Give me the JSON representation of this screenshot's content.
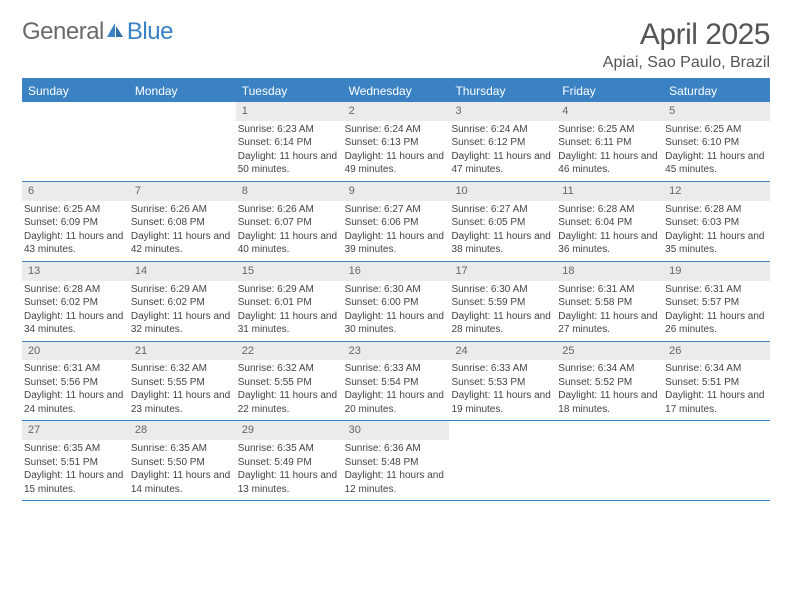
{
  "brand": {
    "part1": "General",
    "part2": "Blue"
  },
  "title": "April 2025",
  "location": "Apiai, Sao Paulo, Brazil",
  "colors": {
    "accent": "#3b82c4",
    "header_bg": "#3b82c4",
    "header_text": "#ffffff",
    "daynum_bg": "#ebebeb",
    "daynum_text": "#666666",
    "body_text": "#444444",
    "border": "#3b82c4"
  },
  "weekdays": [
    "Sunday",
    "Monday",
    "Tuesday",
    "Wednesday",
    "Thursday",
    "Friday",
    "Saturday"
  ],
  "weeks": [
    [
      {
        "n": "",
        "empty": true
      },
      {
        "n": "",
        "empty": true
      },
      {
        "n": "1",
        "sr": "Sunrise: 6:23 AM",
        "ss": "Sunset: 6:14 PM",
        "dl": "Daylight: 11 hours and 50 minutes."
      },
      {
        "n": "2",
        "sr": "Sunrise: 6:24 AM",
        "ss": "Sunset: 6:13 PM",
        "dl": "Daylight: 11 hours and 49 minutes."
      },
      {
        "n": "3",
        "sr": "Sunrise: 6:24 AM",
        "ss": "Sunset: 6:12 PM",
        "dl": "Daylight: 11 hours and 47 minutes."
      },
      {
        "n": "4",
        "sr": "Sunrise: 6:25 AM",
        "ss": "Sunset: 6:11 PM",
        "dl": "Daylight: 11 hours and 46 minutes."
      },
      {
        "n": "5",
        "sr": "Sunrise: 6:25 AM",
        "ss": "Sunset: 6:10 PM",
        "dl": "Daylight: 11 hours and 45 minutes."
      }
    ],
    [
      {
        "n": "6",
        "sr": "Sunrise: 6:25 AM",
        "ss": "Sunset: 6:09 PM",
        "dl": "Daylight: 11 hours and 43 minutes."
      },
      {
        "n": "7",
        "sr": "Sunrise: 6:26 AM",
        "ss": "Sunset: 6:08 PM",
        "dl": "Daylight: 11 hours and 42 minutes."
      },
      {
        "n": "8",
        "sr": "Sunrise: 6:26 AM",
        "ss": "Sunset: 6:07 PM",
        "dl": "Daylight: 11 hours and 40 minutes."
      },
      {
        "n": "9",
        "sr": "Sunrise: 6:27 AM",
        "ss": "Sunset: 6:06 PM",
        "dl": "Daylight: 11 hours and 39 minutes."
      },
      {
        "n": "10",
        "sr": "Sunrise: 6:27 AM",
        "ss": "Sunset: 6:05 PM",
        "dl": "Daylight: 11 hours and 38 minutes."
      },
      {
        "n": "11",
        "sr": "Sunrise: 6:28 AM",
        "ss": "Sunset: 6:04 PM",
        "dl": "Daylight: 11 hours and 36 minutes."
      },
      {
        "n": "12",
        "sr": "Sunrise: 6:28 AM",
        "ss": "Sunset: 6:03 PM",
        "dl": "Daylight: 11 hours and 35 minutes."
      }
    ],
    [
      {
        "n": "13",
        "sr": "Sunrise: 6:28 AM",
        "ss": "Sunset: 6:02 PM",
        "dl": "Daylight: 11 hours and 34 minutes."
      },
      {
        "n": "14",
        "sr": "Sunrise: 6:29 AM",
        "ss": "Sunset: 6:02 PM",
        "dl": "Daylight: 11 hours and 32 minutes."
      },
      {
        "n": "15",
        "sr": "Sunrise: 6:29 AM",
        "ss": "Sunset: 6:01 PM",
        "dl": "Daylight: 11 hours and 31 minutes."
      },
      {
        "n": "16",
        "sr": "Sunrise: 6:30 AM",
        "ss": "Sunset: 6:00 PM",
        "dl": "Daylight: 11 hours and 30 minutes."
      },
      {
        "n": "17",
        "sr": "Sunrise: 6:30 AM",
        "ss": "Sunset: 5:59 PM",
        "dl": "Daylight: 11 hours and 28 minutes."
      },
      {
        "n": "18",
        "sr": "Sunrise: 6:31 AM",
        "ss": "Sunset: 5:58 PM",
        "dl": "Daylight: 11 hours and 27 minutes."
      },
      {
        "n": "19",
        "sr": "Sunrise: 6:31 AM",
        "ss": "Sunset: 5:57 PM",
        "dl": "Daylight: 11 hours and 26 minutes."
      }
    ],
    [
      {
        "n": "20",
        "sr": "Sunrise: 6:31 AM",
        "ss": "Sunset: 5:56 PM",
        "dl": "Daylight: 11 hours and 24 minutes."
      },
      {
        "n": "21",
        "sr": "Sunrise: 6:32 AM",
        "ss": "Sunset: 5:55 PM",
        "dl": "Daylight: 11 hours and 23 minutes."
      },
      {
        "n": "22",
        "sr": "Sunrise: 6:32 AM",
        "ss": "Sunset: 5:55 PM",
        "dl": "Daylight: 11 hours and 22 minutes."
      },
      {
        "n": "23",
        "sr": "Sunrise: 6:33 AM",
        "ss": "Sunset: 5:54 PM",
        "dl": "Daylight: 11 hours and 20 minutes."
      },
      {
        "n": "24",
        "sr": "Sunrise: 6:33 AM",
        "ss": "Sunset: 5:53 PM",
        "dl": "Daylight: 11 hours and 19 minutes."
      },
      {
        "n": "25",
        "sr": "Sunrise: 6:34 AM",
        "ss": "Sunset: 5:52 PM",
        "dl": "Daylight: 11 hours and 18 minutes."
      },
      {
        "n": "26",
        "sr": "Sunrise: 6:34 AM",
        "ss": "Sunset: 5:51 PM",
        "dl": "Daylight: 11 hours and 17 minutes."
      }
    ],
    [
      {
        "n": "27",
        "sr": "Sunrise: 6:35 AM",
        "ss": "Sunset: 5:51 PM",
        "dl": "Daylight: 11 hours and 15 minutes."
      },
      {
        "n": "28",
        "sr": "Sunrise: 6:35 AM",
        "ss": "Sunset: 5:50 PM",
        "dl": "Daylight: 11 hours and 14 minutes."
      },
      {
        "n": "29",
        "sr": "Sunrise: 6:35 AM",
        "ss": "Sunset: 5:49 PM",
        "dl": "Daylight: 11 hours and 13 minutes."
      },
      {
        "n": "30",
        "sr": "Sunrise: 6:36 AM",
        "ss": "Sunset: 5:48 PM",
        "dl": "Daylight: 11 hours and 12 minutes."
      },
      {
        "n": "",
        "empty": true
      },
      {
        "n": "",
        "empty": true
      },
      {
        "n": "",
        "empty": true
      }
    ]
  ]
}
